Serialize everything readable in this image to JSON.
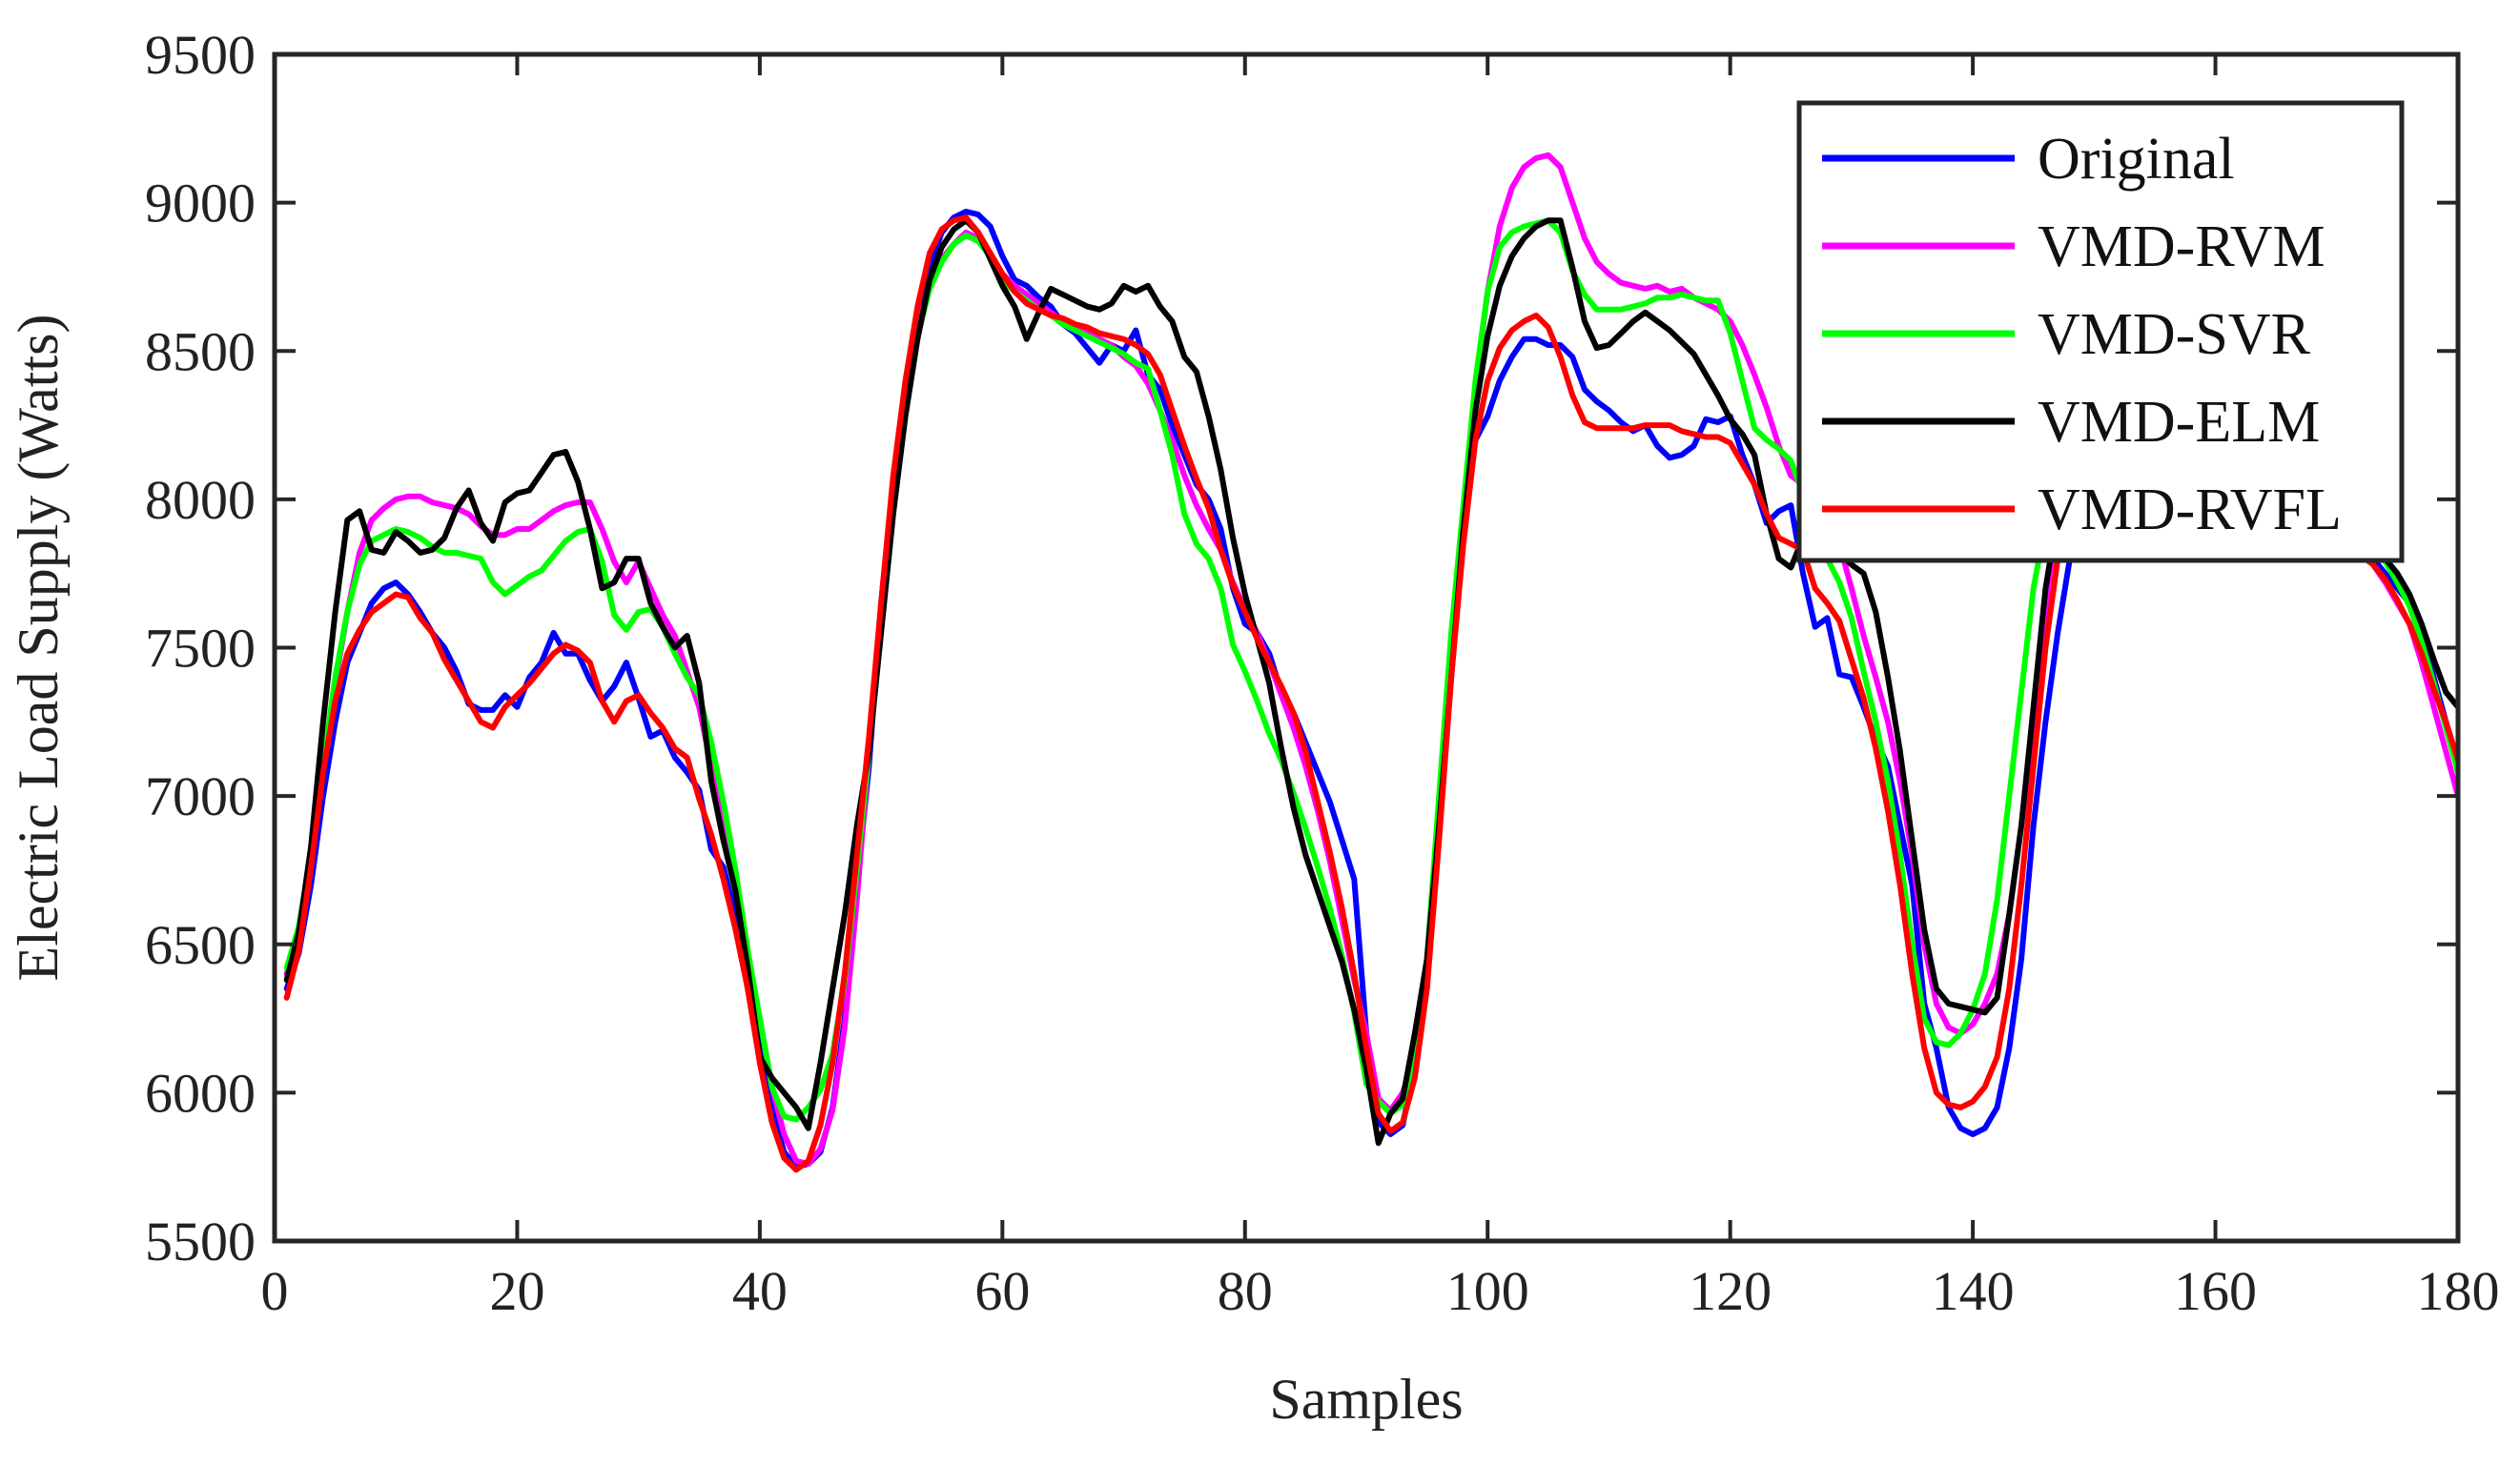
{
  "chart_data": {
    "type": "line",
    "title": "",
    "xlabel": "Samples",
    "ylabel": "Electric Load Supply (Watts)",
    "xlim": [
      0,
      180
    ],
    "ylim": [
      5500,
      9500
    ],
    "xticks": [
      0,
      20,
      40,
      60,
      80,
      100,
      120,
      140,
      160,
      180
    ],
    "yticks": [
      5500,
      6000,
      6500,
      7000,
      7500,
      8000,
      8500,
      9000,
      9500
    ],
    "grid": false,
    "legend_position": "top-right",
    "x": [
      1,
      2,
      3,
      4,
      5,
      6,
      7,
      8,
      9,
      10,
      11,
      12,
      13,
      14,
      15,
      16,
      17,
      18,
      19,
      20,
      21,
      22,
      23,
      24,
      25,
      26,
      27,
      28,
      29,
      30,
      31,
      32,
      33,
      34,
      35,
      36,
      37,
      38,
      39,
      40,
      41,
      42,
      43,
      44,
      45,
      46,
      47,
      48,
      49,
      50,
      51,
      52,
      53,
      54,
      55,
      56,
      57,
      58,
      59,
      60,
      61,
      62,
      63,
      64,
      65,
      66,
      67,
      68,
      69,
      70,
      71,
      72,
      73,
      74,
      75,
      76,
      77,
      78,
      79,
      80,
      81,
      82,
      83,
      84,
      85,
      86,
      87,
      88,
      89,
      90,
      91,
      92,
      93,
      94,
      95,
      96,
      97,
      98,
      99,
      100,
      101,
      102,
      103,
      104,
      105,
      106,
      107,
      108,
      109,
      110,
      111,
      112,
      113,
      114,
      115,
      116,
      117,
      118,
      119,
      120,
      121,
      122,
      123,
      124,
      125,
      126,
      127,
      128,
      129,
      130,
      131,
      132,
      133,
      134,
      135,
      136,
      137,
      138,
      139,
      140,
      141,
      142,
      143,
      144,
      145,
      146,
      147,
      148,
      149,
      150,
      151,
      152,
      153,
      154,
      155,
      156,
      157,
      158,
      159,
      160,
      161,
      162,
      163,
      164,
      165,
      166,
      167,
      168,
      169,
      170,
      171,
      172,
      173,
      174,
      175,
      176,
      177,
      178,
      179,
      180
    ],
    "series": [
      {
        "name": "Original",
        "color": "#0000ff",
        "values": [
          6350,
          6470,
          6700,
          7000,
          7250,
          7450,
          7550,
          7650,
          7700,
          7720,
          7680,
          7620,
          7550,
          7500,
          7420,
          7310,
          7290,
          7290,
          7340,
          7300,
          7400,
          7450,
          7550,
          7480,
          7480,
          7390,
          7320,
          7370,
          7450,
          7330,
          7200,
          7220,
          7130,
          7080,
          7020,
          6820,
          6760,
          6600,
          6350,
          6200,
          5950,
          5800,
          5750,
          5760,
          5800,
          5950,
          6250,
          6700,
          7100,
          7650,
          8050,
          8350,
          8580,
          8780,
          8900,
          8950,
          8970,
          8960,
          8920,
          8820,
          8740,
          8720,
          8680,
          8650,
          8590,
          8560,
          8510,
          8460,
          8520,
          8500,
          8570,
          8420,
          8370,
          8250,
          8150,
          8050,
          8000,
          7900,
          7700,
          7580,
          7550,
          7480,
          7350,
          7280,
          7180,
          7080,
          6980,
          6850,
          6720,
          6200,
          5900,
          5860,
          5890,
          6100,
          6350,
          6950,
          7500,
          7950,
          8200,
          8280,
          8400,
          8480,
          8540,
          8540,
          8520,
          8520,
          8480,
          8370,
          8330,
          8300,
          8260,
          8230,
          8250,
          8180,
          8140,
          8150,
          8180,
          8270,
          8260,
          8280,
          8150,
          8050,
          7920,
          7960,
          7980,
          7750,
          7570,
          7600,
          7410,
          7400,
          7300,
          7190,
          7100,
          6900,
          6700,
          6300,
          6150,
          5950,
          5880,
          5860,
          5880,
          5950,
          6150,
          6450,
          6900,
          7250,
          7550,
          7800,
          7980,
          8050,
          8100,
          8120,
          8130,
          8130,
          8120,
          8110,
          8100,
          8090,
          8080,
          8050,
          8030,
          8000,
          7980,
          7960,
          7940,
          7920,
          7900,
          7880,
          7860,
          7840,
          7820,
          7800,
          7800,
          7750,
          7700,
          7650,
          7550,
          7400,
          7250,
          7100
        ]
      },
      {
        "name": "VMD-RVM",
        "color": "#ff00ff",
        "values": [
          6400,
          6530,
          6780,
          7080,
          7380,
          7620,
          7820,
          7930,
          7970,
          8000,
          8010,
          8010,
          7990,
          7980,
          7970,
          7950,
          7910,
          7880,
          7880,
          7900,
          7900,
          7930,
          7960,
          7980,
          7990,
          7990,
          7900,
          7790,
          7720,
          7790,
          7700,
          7610,
          7540,
          7420,
          7300,
          7100,
          6920,
          6700,
          6450,
          6250,
          6020,
          5860,
          5770,
          5760,
          5810,
          5940,
          6220,
          6650,
          7150,
          7650,
          8050,
          8350,
          8580,
          8720,
          8810,
          8860,
          8900,
          8880,
          8830,
          8760,
          8720,
          8690,
          8660,
          8630,
          8600,
          8580,
          8560,
          8540,
          8520,
          8480,
          8450,
          8390,
          8300,
          8200,
          8080,
          7980,
          7900,
          7830,
          7720,
          7630,
          7550,
          7450,
          7340,
          7230,
          7100,
          6950,
          6780,
          6580,
          6380,
          6200,
          5980,
          5940,
          6000,
          6120,
          6420,
          6950,
          7500,
          7950,
          8380,
          8700,
          8920,
          9050,
          9120,
          9150,
          9160,
          9120,
          9000,
          8880,
          8800,
          8760,
          8730,
          8720,
          8710,
          8720,
          8700,
          8710,
          8680,
          8660,
          8640,
          8600,
          8520,
          8420,
          8310,
          8180,
          8080,
          8050,
          8030,
          7960,
          7850,
          7700,
          7540,
          7400,
          7250,
          7050,
          6800,
          6500,
          6300,
          6220,
          6200,
          6230,
          6300,
          6400,
          6600,
          6900,
          7250,
          7600,
          7850,
          8000,
          8080,
          8120,
          8150,
          8170,
          8180,
          8190,
          8180,
          8170,
          8160,
          8150,
          8130,
          8110,
          8080,
          8060,
          8040,
          8010,
          7990,
          7970,
          7950,
          7930,
          7900,
          7880,
          7860,
          7820,
          7780,
          7720,
          7650,
          7580,
          7450,
          7300,
          7150,
          7000
        ]
      },
      {
        "name": "VMD-SVR",
        "color": "#00ff00",
        "values": [
          6420,
          6560,
          6800,
          7100,
          7400,
          7620,
          7780,
          7860,
          7880,
          7900,
          7890,
          7870,
          7840,
          7820,
          7820,
          7810,
          7800,
          7720,
          7680,
          7710,
          7740,
          7760,
          7810,
          7860,
          7890,
          7900,
          7790,
          7610,
          7560,
          7620,
          7630,
          7570,
          7480,
          7400,
          7340,
          7180,
          6980,
          6750,
          6480,
          6250,
          6020,
          5920,
          5910,
          5950,
          6010,
          6130,
          6380,
          6750,
          7150,
          7620,
          8020,
          8320,
          8550,
          8710,
          8800,
          8860,
          8890,
          8870,
          8820,
          8740,
          8700,
          8670,
          8640,
          8620,
          8590,
          8570,
          8550,
          8530,
          8510,
          8490,
          8460,
          8440,
          8300,
          8150,
          7950,
          7850,
          7800,
          7700,
          7510,
          7420,
          7320,
          7210,
          7120,
          7010,
          6890,
          6760,
          6620,
          6460,
          6270,
          6030,
          5970,
          5930,
          5960,
          6120,
          6450,
          7000,
          7550,
          7980,
          8400,
          8700,
          8850,
          8900,
          8920,
          8930,
          8940,
          8900,
          8770,
          8690,
          8640,
          8640,
          8640,
          8650,
          8660,
          8680,
          8680,
          8690,
          8680,
          8670,
          8670,
          8560,
          8400,
          8240,
          8200,
          8170,
          8130,
          8020,
          7900,
          7800,
          7720,
          7600,
          7420,
          7250,
          7050,
          6800,
          6500,
          6250,
          6170,
          6160,
          6200,
          6280,
          6400,
          6650,
          7000,
          7350,
          7700,
          7920,
          8050,
          8120,
          8160,
          8180,
          8200,
          8210,
          8220,
          8220,
          8210,
          8200,
          8190,
          8180,
          8160,
          8140,
          8120,
          8100,
          8080,
          8060,
          8040,
          8020,
          8000,
          7980,
          7960,
          7940,
          7910,
          7880,
          7840,
          7790,
          7720,
          7640,
          7520,
          7380,
          7230,
          7080
        ]
      },
      {
        "name": "VMD-ELM",
        "color": "#000000",
        "values": [
          6380,
          6540,
          6830,
          7250,
          7620,
          7930,
          7960,
          7830,
          7820,
          7890,
          7860,
          7820,
          7830,
          7870,
          7970,
          8030,
          7920,
          7860,
          7990,
          8020,
          8030,
          8090,
          8150,
          8160,
          8060,
          7900,
          7700,
          7720,
          7800,
          7800,
          7650,
          7570,
          7500,
          7540,
          7380,
          7050,
          6850,
          6680,
          6420,
          6120,
          6050,
          6000,
          5950,
          5880,
          6100,
          6350,
          6600,
          6900,
          7150,
          7550,
          7950,
          8280,
          8540,
          8740,
          8850,
          8910,
          8940,
          8900,
          8810,
          8720,
          8650,
          8540,
          8630,
          8710,
          8690,
          8670,
          8650,
          8640,
          8660,
          8720,
          8700,
          8720,
          8650,
          8600,
          8480,
          8430,
          8280,
          8100,
          7870,
          7680,
          7530,
          7380,
          7160,
          6960,
          6800,
          6680,
          6560,
          6440,
          6280,
          6080,
          5830,
          5930,
          5980,
          6200,
          6450,
          6900,
          7400,
          7900,
          8300,
          8550,
          8720,
          8820,
          8880,
          8920,
          8940,
          8940,
          8780,
          8600,
          8510,
          8520,
          8560,
          8600,
          8630,
          8600,
          8570,
          8530,
          8490,
          8420,
          8350,
          8270,
          8220,
          8150,
          7950,
          7800,
          7770,
          7870,
          7900,
          7850,
          7820,
          7780,
          7750,
          7620,
          7400,
          7150,
          6850,
          6550,
          6350,
          6300,
          6290,
          6280,
          6270,
          6320,
          6600,
          6900,
          7300,
          7700,
          7950,
          8100,
          8180,
          8200,
          8210,
          8220,
          8230,
          8230,
          8220,
          8210,
          8200,
          8180,
          8160,
          8140,
          8120,
          8100,
          8080,
          8060,
          8040,
          8020,
          8000,
          7980,
          7960,
          7930,
          7900,
          7870,
          7840,
          7800,
          7750,
          7680,
          7580,
          7460,
          7350,
          7300
        ]
      },
      {
        "name": "VMD-RVFL",
        "color": "#ff0000",
        "values": [
          6320,
          6480,
          6760,
          7080,
          7320,
          7480,
          7560,
          7620,
          7650,
          7680,
          7670,
          7600,
          7550,
          7460,
          7390,
          7320,
          7250,
          7230,
          7300,
          7340,
          7380,
          7430,
          7480,
          7510,
          7490,
          7450,
          7320,
          7250,
          7320,
          7340,
          7280,
          7230,
          7160,
          7130,
          6990,
          6870,
          6720,
          6550,
          6350,
          6100,
          5900,
          5780,
          5740,
          5770,
          5890,
          6100,
          6400,
          6800,
          7200,
          7650,
          8080,
          8400,
          8650,
          8830,
          8910,
          8940,
          8950,
          8900,
          8830,
          8760,
          8700,
          8660,
          8640,
          8620,
          8610,
          8590,
          8580,
          8560,
          8550,
          8540,
          8520,
          8490,
          8420,
          8300,
          8180,
          8070,
          7970,
          7830,
          7710,
          7620,
          7530,
          7450,
          7370,
          7280,
          7150,
          6980,
          6810,
          6620,
          6400,
          6150,
          5930,
          5870,
          5900,
          6050,
          6350,
          6850,
          7400,
          7850,
          8200,
          8400,
          8510,
          8570,
          8600,
          8620,
          8580,
          8480,
          8350,
          8260,
          8240,
          8240,
          8240,
          8240,
          8250,
          8250,
          8250,
          8230,
          8220,
          8210,
          8210,
          8190,
          8120,
          8050,
          7950,
          7870,
          7850,
          7830,
          7700,
          7650,
          7590,
          7460,
          7330,
          7160,
          6950,
          6700,
          6400,
          6150,
          6000,
          5960,
          5950,
          5970,
          6020,
          6120,
          6350,
          6700,
          7100,
          7500,
          7800,
          7980,
          8060,
          8100,
          8120,
          8130,
          8140,
          8140,
          8130,
          8120,
          8110,
          8100,
          8080,
          8060,
          8040,
          8020,
          8000,
          7980,
          7960,
          7940,
          7920,
          7900,
          7880,
          7860,
          7840,
          7810,
          7780,
          7730,
          7660,
          7580,
          7480,
          7360,
          7250,
          7120
        ]
      }
    ]
  }
}
